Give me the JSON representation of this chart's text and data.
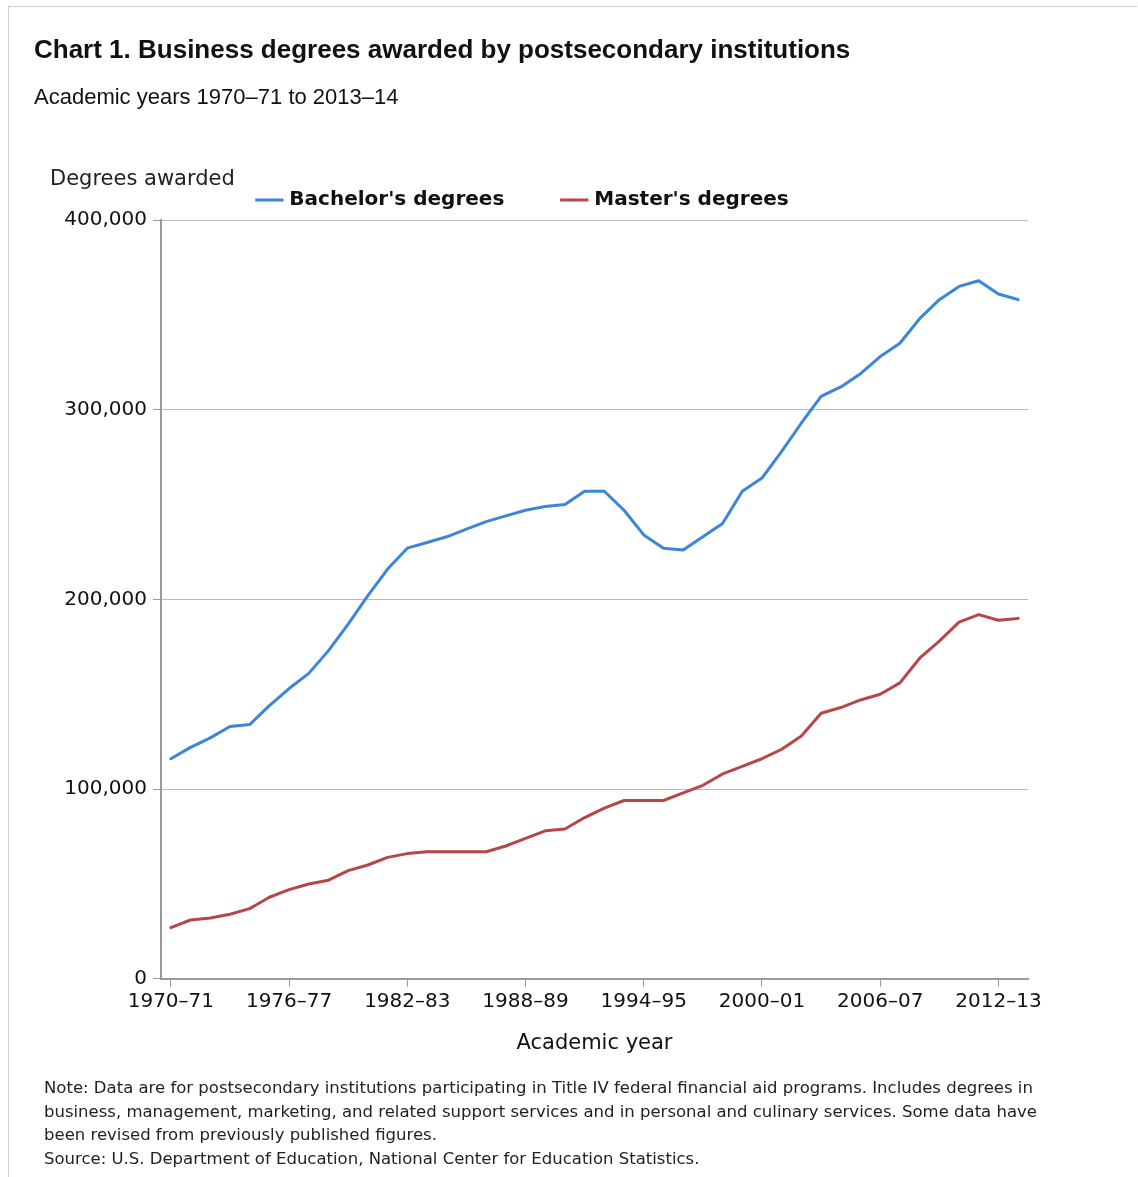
{
  "chart_data": {
    "type": "line",
    "title": "Chart 1. Business degrees awarded by postsecondary institutions",
    "subtitle": "Academic years 1970–71 to 2013–14",
    "xlabel": "Academic year",
    "ylabel": "Degrees awarded",
    "categories": [
      "1970–71",
      null,
      null,
      null,
      null,
      null,
      "1976–77",
      null,
      null,
      null,
      null,
      null,
      "1982–83",
      null,
      null,
      null,
      null,
      null,
      "1988–89",
      null,
      null,
      null,
      null,
      null,
      "1994–95",
      null,
      null,
      null,
      null,
      null,
      "2000–01",
      null,
      null,
      null,
      null,
      null,
      "2006–07",
      null,
      null,
      null,
      null,
      null,
      "2012–13",
      null
    ],
    "series": [
      {
        "name": "Bachelor's degrees",
        "color": "#3b86d8",
        "values": [
          116000,
          122000,
          127000,
          133000,
          134000,
          144000,
          153000,
          161000,
          173000,
          187000,
          202000,
          216000,
          227000,
          230000,
          233000,
          237000,
          241000,
          244000,
          247000,
          249000,
          250000,
          257000,
          257000,
          247000,
          234000,
          227000,
          226000,
          233000,
          240000,
          257000,
          264000,
          278000,
          293000,
          307000,
          312000,
          319000,
          328000,
          335000,
          348000,
          358000,
          365000,
          368000,
          361000,
          358000
        ]
      },
      {
        "name": "Master's degrees",
        "color": "#b94646",
        "values": [
          27000,
          31000,
          32000,
          34000,
          37000,
          43000,
          47000,
          50000,
          52000,
          57000,
          60000,
          64000,
          66000,
          67000,
          67000,
          67000,
          67000,
          70000,
          74000,
          78000,
          79000,
          85000,
          90000,
          94000,
          94000,
          94000,
          98000,
          102000,
          108000,
          112000,
          116000,
          121000,
          128000,
          140000,
          143000,
          147000,
          150000,
          156000,
          169000,
          178000,
          188000,
          192000,
          189000,
          190000
        ]
      }
    ],
    "ylim": [
      0,
      400000
    ],
    "yticks": [
      0,
      {
        "value": 100000,
        "label": "100,000"
      },
      {
        "value": 200000,
        "label": "200,000"
      },
      {
        "value": 300000,
        "label": "300,000"
      },
      {
        "value": 400000,
        "label": "400,000"
      }
    ],
    "grid": "y",
    "legend": "top",
    "marker": "none",
    "line_style": "solid",
    "annotations": [
      "Note: Data are for postsecondary institutions participating in Title IV federal financial aid programs. Includes degrees in business, management, marketing, and related support services and in personal and culinary services. Some data have been revised from previously published figures.",
      "Source: U.S. Department of Education, National Center for Education Statistics."
    ]
  }
}
